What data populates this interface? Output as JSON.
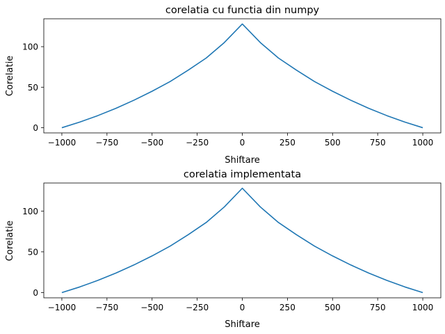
{
  "chart_data": [
    {
      "type": "line",
      "title": "corelatia cu functia din numpy",
      "xlabel": "Shiftare",
      "ylabel": "Corelatie",
      "xlim": [
        -1100,
        1100
      ],
      "ylim": [
        -6.4,
        134.4
      ],
      "x_ticks": [
        -1000,
        -750,
        -500,
        -250,
        0,
        250,
        500,
        750,
        1000
      ],
      "y_ticks": [
        0,
        50,
        100
      ],
      "grid": false,
      "series": [
        {
          "color": "#1f77b4",
          "x": [
            -1000,
            -900,
            -800,
            -700,
            -600,
            -500,
            -400,
            -300,
            -200,
            -100,
            0,
            100,
            200,
            300,
            400,
            500,
            600,
            700,
            800,
            900,
            1000
          ],
          "y": [
            0,
            7,
            15,
            24,
            34,
            45,
            57,
            71,
            86,
            105,
            128,
            105,
            86,
            71,
            57,
            45,
            34,
            24,
            15,
            7,
            0
          ]
        }
      ]
    },
    {
      "type": "line",
      "title": "corelatia implementata",
      "xlabel": "Shiftare",
      "ylabel": "Corelatie",
      "xlim": [
        -1100,
        1100
      ],
      "ylim": [
        -6.4,
        134.4
      ],
      "x_ticks": [
        -1000,
        -750,
        -500,
        -250,
        0,
        250,
        500,
        750,
        1000
      ],
      "y_ticks": [
        0,
        50,
        100
      ],
      "grid": false,
      "series": [
        {
          "color": "#1f77b4",
          "x": [
            -1000,
            -900,
            -800,
            -700,
            -600,
            -500,
            -400,
            -300,
            -200,
            -100,
            0,
            100,
            200,
            300,
            400,
            500,
            600,
            700,
            800,
            900,
            1000
          ],
          "y": [
            0,
            7,
            15,
            24,
            34,
            45,
            57,
            71,
            86,
            105,
            128,
            105,
            86,
            71,
            57,
            45,
            34,
            24,
            15,
            7,
            0
          ]
        }
      ]
    }
  ]
}
